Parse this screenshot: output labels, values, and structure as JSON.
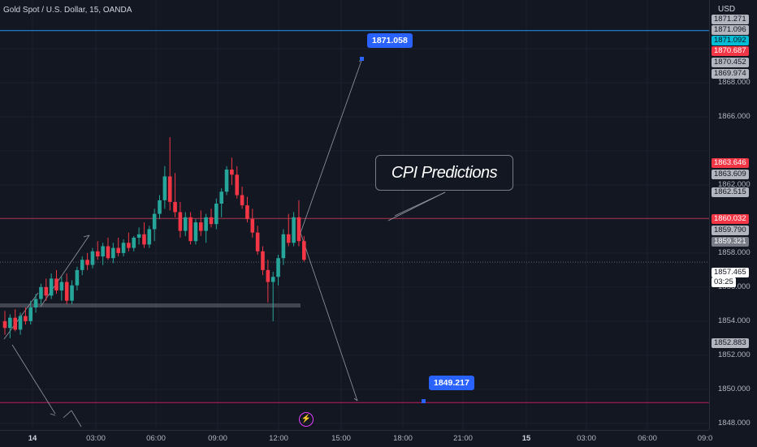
{
  "header": {
    "symbol_title": "Gold Spot / U.S. Dollar, 15, OANDA"
  },
  "price_axis": {
    "currency": "USD",
    "ticks": [
      "1868.000",
      "1866.000",
      "1862.000",
      "1858.000",
      "1856.000",
      "1854.000",
      "1852.000",
      "1850.000",
      "1848.000"
    ],
    "tags": [
      {
        "text": "1871.271",
        "bg": "#b2b5be",
        "fg": "#131722"
      },
      {
        "text": "1871.096",
        "bg": "#b2b5be",
        "fg": "#131722"
      },
      {
        "text": "1871.092",
        "bg": "#00bcd4",
        "fg": "#131722"
      },
      {
        "text": "1870.687",
        "bg": "#f23645",
        "fg": "#ffffff"
      },
      {
        "text": "1870.452",
        "bg": "#b2b5be",
        "fg": "#131722"
      },
      {
        "text": "1869.974",
        "bg": "#b2b5be",
        "fg": "#131722"
      },
      {
        "text": "1863.646",
        "bg": "#f23645",
        "fg": "#ffffff"
      },
      {
        "text": "1863.609",
        "bg": "#b2b5be",
        "fg": "#131722"
      },
      {
        "text": "1862.515",
        "bg": "#b2b5be",
        "fg": "#131722"
      },
      {
        "text": "1860.032",
        "bg": "#f23645",
        "fg": "#ffffff"
      },
      {
        "text": "1859.790",
        "bg": "#b2b5be",
        "fg": "#131722"
      },
      {
        "text": "1859.321",
        "bg": "#787b86",
        "fg": "#ffffff"
      },
      {
        "text": "1857.465",
        "bg": "#ffffff",
        "fg": "#131722"
      },
      {
        "text": "03:25",
        "bg": "#ffffff",
        "fg": "#131722"
      },
      {
        "text": "1852.883",
        "bg": "#b2b5be",
        "fg": "#131722"
      }
    ]
  },
  "time_axis": {
    "labels": [
      {
        "text": "14",
        "bold": true
      },
      {
        "text": "03:00",
        "bold": false
      },
      {
        "text": "06:00",
        "bold": false
      },
      {
        "text": "09:00",
        "bold": false
      },
      {
        "text": "12:00",
        "bold": false
      },
      {
        "text": "15:00",
        "bold": false
      },
      {
        "text": "18:00",
        "bold": false
      },
      {
        "text": "21:00",
        "bold": false
      },
      {
        "text": "15",
        "bold": true
      },
      {
        "text": "03:00",
        "bold": false
      },
      {
        "text": "06:00",
        "bold": false
      },
      {
        "text": "09:0",
        "bold": false
      }
    ]
  },
  "annotations": {
    "target_up": "1871.058",
    "target_down": "1849.217",
    "note_text": "CPI Predictions"
  },
  "colors": {
    "up": "#26a69a",
    "down": "#f23645",
    "bg": "#131722",
    "accent": "#2962ff"
  },
  "chart_data": {
    "type": "candlestick",
    "symbol": "Gold Spot / U.S. Dollar, 15, OANDA",
    "ylim": [
      1847.8,
      1872.0
    ],
    "levels": [
      1871.058,
      1860.032,
      1857.465,
      1849.217
    ],
    "candles": [
      [
        1854.0,
        1854.6,
        1853.2,
        1853.6
      ],
      [
        1853.6,
        1854.4,
        1853.0,
        1854.2
      ],
      [
        1854.2,
        1854.7,
        1853.4,
        1853.5
      ],
      [
        1853.5,
        1854.5,
        1853.2,
        1854.3
      ],
      [
        1854.3,
        1854.8,
        1853.8,
        1854.0
      ],
      [
        1854.0,
        1855.2,
        1853.8,
        1854.8
      ],
      [
        1854.8,
        1855.6,
        1854.5,
        1855.3
      ],
      [
        1855.3,
        1856.2,
        1855.0,
        1856.0
      ],
      [
        1856.0,
        1856.5,
        1855.2,
        1855.5
      ],
      [
        1855.5,
        1856.8,
        1855.3,
        1856.5
      ],
      [
        1856.5,
        1857.0,
        1855.6,
        1855.8
      ],
      [
        1855.8,
        1856.6,
        1855.2,
        1856.3
      ],
      [
        1856.3,
        1856.8,
        1855.0,
        1855.2
      ],
      [
        1855.2,
        1856.4,
        1855.0,
        1856.1
      ],
      [
        1856.1,
        1857.2,
        1855.8,
        1857.0
      ],
      [
        1857.0,
        1857.8,
        1856.7,
        1857.6
      ],
      [
        1857.6,
        1858.0,
        1857.0,
        1857.3
      ],
      [
        1857.3,
        1858.3,
        1857.1,
        1858.1
      ],
      [
        1858.1,
        1858.7,
        1857.6,
        1857.8
      ],
      [
        1857.8,
        1858.6,
        1857.3,
        1858.4
      ],
      [
        1858.4,
        1858.9,
        1857.6,
        1857.7
      ],
      [
        1857.7,
        1858.6,
        1857.4,
        1858.3
      ],
      [
        1858.3,
        1858.9,
        1857.8,
        1858.0
      ],
      [
        1858.0,
        1858.8,
        1857.8,
        1858.6
      ],
      [
        1858.6,
        1859.2,
        1858.1,
        1858.3
      ],
      [
        1858.3,
        1859.0,
        1858.1,
        1858.9
      ],
      [
        1858.9,
        1859.5,
        1858.5,
        1859.1
      ],
      [
        1859.1,
        1859.8,
        1858.3,
        1858.5
      ],
      [
        1858.5,
        1859.6,
        1858.3,
        1859.4
      ],
      [
        1859.4,
        1860.6,
        1858.7,
        1860.3
      ],
      [
        1860.3,
        1861.4,
        1860.0,
        1861.1
      ],
      [
        1861.1,
        1863.1,
        1860.6,
        1862.5
      ],
      [
        1862.5,
        1864.8,
        1860.5,
        1861.0
      ],
      [
        1861.0,
        1862.7,
        1860.1,
        1860.4
      ],
      [
        1860.4,
        1861.0,
        1858.9,
        1859.3
      ],
      [
        1859.3,
        1860.4,
        1859.0,
        1860.1
      ],
      [
        1860.1,
        1860.4,
        1858.5,
        1858.7
      ],
      [
        1858.7,
        1860.0,
        1858.5,
        1859.8
      ],
      [
        1859.8,
        1860.5,
        1859.0,
        1859.3
      ],
      [
        1859.3,
        1860.3,
        1858.6,
        1860.1
      ],
      [
        1860.1,
        1860.6,
        1859.5,
        1859.7
      ],
      [
        1859.7,
        1861.2,
        1859.4,
        1860.9
      ],
      [
        1860.9,
        1861.8,
        1860.1,
        1861.6
      ],
      [
        1861.6,
        1863.1,
        1861.4,
        1862.9
      ],
      [
        1862.9,
        1863.6,
        1862.0,
        1862.6
      ],
      [
        1862.6,
        1863.1,
        1861.2,
        1861.4
      ],
      [
        1861.4,
        1861.9,
        1860.6,
        1860.8
      ],
      [
        1860.8,
        1861.3,
        1859.8,
        1860.0
      ],
      [
        1860.0,
        1860.6,
        1858.9,
        1859.2
      ],
      [
        1859.2,
        1859.6,
        1857.9,
        1858.1
      ],
      [
        1858.1,
        1858.4,
        1856.7,
        1857.0
      ],
      [
        1857.0,
        1857.6,
        1855.1,
        1856.3
      ],
      [
        1856.3,
        1856.9,
        1854.0,
        1856.6
      ],
      [
        1856.6,
        1857.9,
        1856.1,
        1857.7
      ],
      [
        1857.7,
        1859.4,
        1857.3,
        1859.1
      ],
      [
        1859.1,
        1860.3,
        1858.4,
        1858.6
      ],
      [
        1858.6,
        1860.4,
        1858.4,
        1860.1
      ],
      [
        1860.1,
        1861.1,
        1858.4,
        1858.7
      ],
      [
        1858.7,
        1859.0,
        1857.5,
        1857.6
      ]
    ]
  }
}
